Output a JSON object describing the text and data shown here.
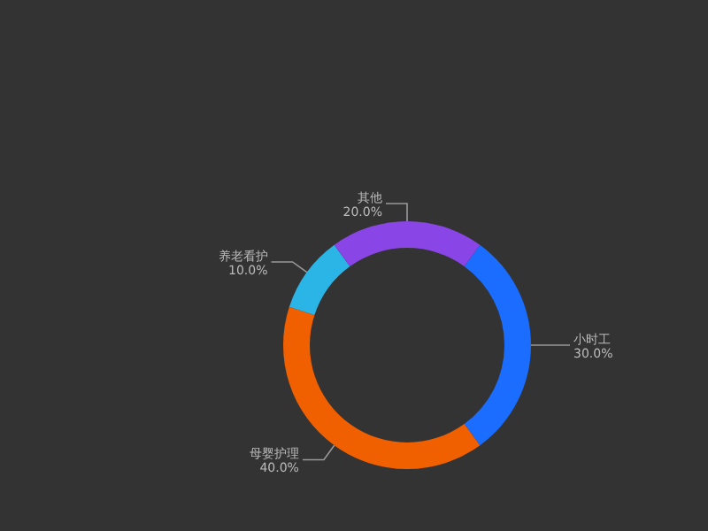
{
  "chart_data": {
    "type": "donut",
    "categories": [
      "小时工",
      "母婴护理",
      "养老看护",
      "其他"
    ],
    "values": [
      30,
      40,
      10,
      20
    ],
    "value_labels": [
      "30.0%",
      "40.0%",
      "10.0%",
      "20.0%"
    ],
    "colors": [
      "#1a6dff",
      "#f06000",
      "#2bb5e6",
      "#8a45e6"
    ]
  }
}
